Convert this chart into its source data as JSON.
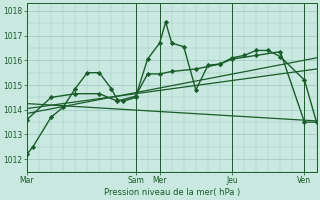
{
  "background_color": "#c8e8e0",
  "grid_color": "#9dc8c0",
  "line_color": "#1a5c2a",
  "x_tick_labels": [
    "Mar",
    "Sam",
    "Mer",
    "Jeu",
    "Ven"
  ],
  "x_tick_positions": [
    0,
    9,
    11,
    17,
    23
  ],
  "xlim": [
    0,
    24
  ],
  "ylabel": "Pression niveau de la mer( hPa )",
  "ylim": [
    1011.5,
    1018.3
  ],
  "yticks": [
    1012,
    1013,
    1014,
    1015,
    1016,
    1017,
    1018
  ],
  "vlines": [
    9,
    11,
    17,
    23
  ],
  "line1_x": [
    0,
    0.5,
    2,
    3,
    4,
    5,
    6,
    7,
    7.5,
    8,
    9,
    10,
    11,
    11.5,
    12,
    13,
    14,
    15,
    16,
    17,
    18,
    19,
    20,
    21,
    23,
    24
  ],
  "line1_y": [
    1012.2,
    1012.5,
    1013.7,
    1014.1,
    1014.85,
    1015.5,
    1015.5,
    1014.85,
    1014.4,
    1014.35,
    1014.5,
    1016.05,
    1016.7,
    1017.55,
    1016.7,
    1016.55,
    1014.8,
    1015.8,
    1015.85,
    1016.1,
    1016.2,
    1016.4,
    1016.4,
    1016.15,
    1015.2,
    1013.5
  ],
  "line2_x": [
    0,
    2,
    4,
    6,
    7.5,
    9,
    10,
    11,
    12,
    14,
    16,
    17,
    19,
    21,
    23,
    24
  ],
  "line2_y": [
    1013.6,
    1014.5,
    1014.65,
    1014.65,
    1014.35,
    1014.55,
    1015.45,
    1015.45,
    1015.55,
    1015.65,
    1015.85,
    1016.05,
    1016.2,
    1016.35,
    1013.5,
    1013.5
  ],
  "trend1_x": [
    0,
    24
  ],
  "trend1_y": [
    1013.85,
    1016.1
  ],
  "trend2_x": [
    0,
    24
  ],
  "trend2_y": [
    1014.05,
    1015.65
  ],
  "trend3_x": [
    0,
    24
  ],
  "trend3_y": [
    1014.25,
    1013.55
  ]
}
